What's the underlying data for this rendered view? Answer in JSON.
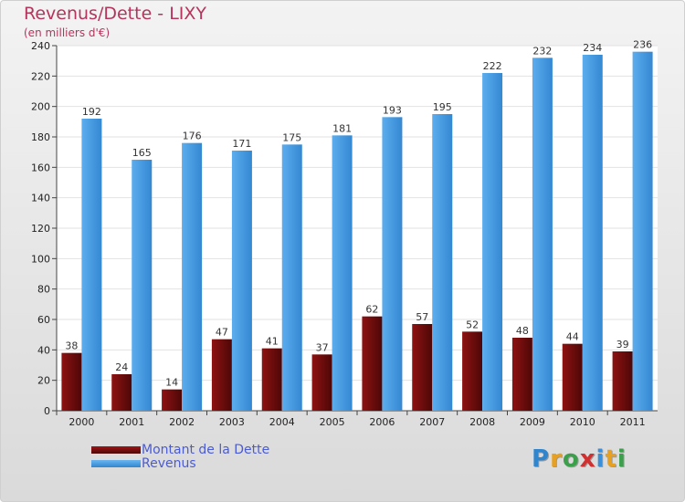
{
  "title": "Revenus/Dette - LIXY",
  "subtitle": "(en milliers d'€)",
  "logo": {
    "text": "Proxiti"
  },
  "chart_data": {
    "type": "bar",
    "categories": [
      "2000",
      "2001",
      "2002",
      "2003",
      "2004",
      "2005",
      "2006",
      "2007",
      "2008",
      "2009",
      "2010",
      "2011"
    ],
    "series": [
      {
        "name": "Montant de la Dette",
        "values": [
          38,
          24,
          14,
          47,
          41,
          37,
          62,
          57,
          52,
          48,
          44,
          39
        ],
        "color": "#6b0a0a"
      },
      {
        "name": "Revenus",
        "values": [
          192,
          165,
          176,
          171,
          175,
          181,
          193,
          195,
          222,
          232,
          234,
          236
        ],
        "color": "#4a9fe3"
      }
    ],
    "yticks": [
      0,
      20,
      40,
      60,
      80,
      100,
      120,
      140,
      160,
      180,
      200,
      220,
      240
    ],
    "ylim": [
      0,
      240
    ],
    "grid": true,
    "legend": "bottom-left"
  }
}
